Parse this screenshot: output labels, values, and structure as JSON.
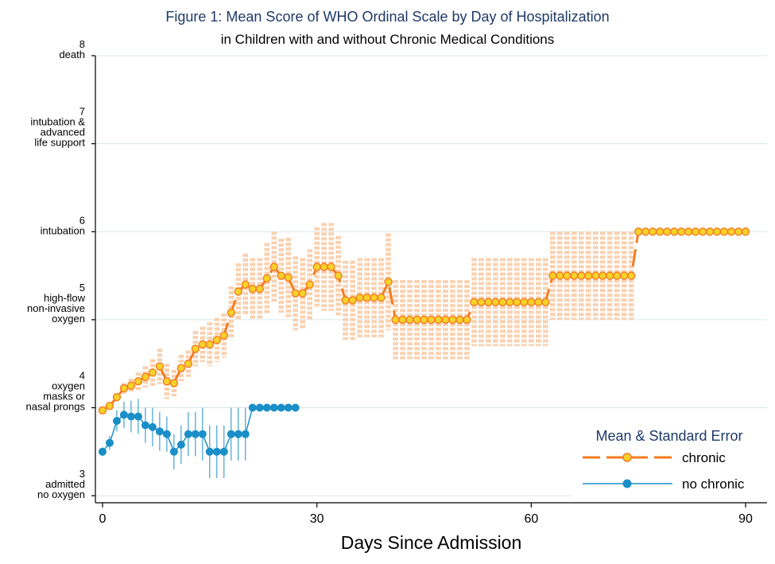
{
  "chart_data": {
    "type": "line",
    "title": "Figure 1: Mean Score of WHO Ordinal Scale by Day of Hospitalization",
    "subtitle": "in Children with and without Chronic Medical Conditions",
    "xlabel": "Days Since Admission",
    "ylabel": "",
    "xlim": [
      -1,
      93
    ],
    "ylim": [
      2.92,
      8.0
    ],
    "x_ticks": [
      0,
      30,
      60,
      90
    ],
    "x_tick_labels": [
      "0",
      "30",
      "60",
      "90"
    ],
    "y_ticks": [
      {
        "value": 3,
        "number": "3",
        "lines": [
          "admitted",
          "no oxygen"
        ]
      },
      {
        "value": 4,
        "number": "4",
        "lines": [
          "oxygen",
          "masks or",
          "nasal prongs"
        ]
      },
      {
        "value": 5,
        "number": "5",
        "lines": [
          "high-flow",
          "non-invasive",
          "oxygen"
        ]
      },
      {
        "value": 6,
        "number": "6",
        "lines": [
          "intubation"
        ]
      },
      {
        "value": 7,
        "number": "7",
        "lines": [
          "intubation &",
          "advanced",
          "life support"
        ]
      },
      {
        "value": 8,
        "number": "8",
        "lines": [
          "death"
        ]
      }
    ],
    "grid": true,
    "legend": {
      "title": "Mean & Standard Error",
      "position": "bottom-right",
      "entries": [
        "chronic",
        "no chronic"
      ]
    },
    "colors": {
      "chronic": "#f47b20",
      "chronic_marker": "#f6d12a",
      "chronic_error": "#f9c79f",
      "no_chronic": "#1a8fc7",
      "grid": "#dbe6e9",
      "title": "#1f3a68"
    },
    "series": [
      {
        "name": "chronic",
        "style": "dashed",
        "x": [
          0,
          1,
          2,
          3,
          4,
          5,
          6,
          7,
          8,
          9,
          10,
          11,
          12,
          13,
          14,
          15,
          16,
          17,
          18,
          19,
          20,
          21,
          22,
          23,
          24,
          25,
          26,
          27,
          28,
          29,
          30,
          31,
          32,
          33,
          34,
          35,
          36,
          37,
          38,
          39,
          40,
          41,
          42,
          43,
          44,
          45,
          46,
          47,
          48,
          49,
          50,
          51,
          52,
          53,
          54,
          55,
          56,
          57,
          58,
          59,
          60,
          61,
          62,
          63,
          64,
          65,
          66,
          67,
          68,
          69,
          70,
          71,
          72,
          73,
          74,
          75,
          76,
          77,
          78,
          79,
          80,
          81,
          82,
          83,
          84,
          85,
          86,
          87,
          88,
          89,
          90
        ],
        "y": [
          3.97,
          4.02,
          4.12,
          4.22,
          4.25,
          4.3,
          4.35,
          4.4,
          4.47,
          4.3,
          4.28,
          4.45,
          4.5,
          4.67,
          4.72,
          4.72,
          4.77,
          4.82,
          5.08,
          5.32,
          5.4,
          5.35,
          5.35,
          5.47,
          5.6,
          5.5,
          5.48,
          5.3,
          5.3,
          5.4,
          5.6,
          5.6,
          5.6,
          5.5,
          5.22,
          5.22,
          5.25,
          5.25,
          5.25,
          5.25,
          5.43,
          5.0,
          5.0,
          5.0,
          5.0,
          5.0,
          5.0,
          5.0,
          5.0,
          5.0,
          5.0,
          5.0,
          5.2,
          5.2,
          5.2,
          5.2,
          5.2,
          5.2,
          5.2,
          5.2,
          5.2,
          5.2,
          5.2,
          5.5,
          5.5,
          5.5,
          5.5,
          5.5,
          5.5,
          5.5,
          5.5,
          5.5,
          5.5,
          5.5,
          5.5,
          6.0,
          6.0,
          6.0,
          6.0,
          6.0,
          6.0,
          6.0,
          6.0,
          6.0,
          6.0,
          6.0,
          6.0,
          6.0,
          6.0,
          6.0,
          6.0
        ],
        "se": [
          0,
          0,
          0,
          0.06,
          0.08,
          0.1,
          0.12,
          0.15,
          0.2,
          0.2,
          0.15,
          0.15,
          0.15,
          0.2,
          0.2,
          0.25,
          0.25,
          0.25,
          0.3,
          0.32,
          0.35,
          0.35,
          0.35,
          0.4,
          0.4,
          0.42,
          0.45,
          0.42,
          0.4,
          0.4,
          0.45,
          0.5,
          0.5,
          0.45,
          0.45,
          0.45,
          0.45,
          0.45,
          0.45,
          0.45,
          0.55,
          0.45,
          0.45,
          0.45,
          0.45,
          0.45,
          0.45,
          0.45,
          0.45,
          0.45,
          0.45,
          0.45,
          0.5,
          0.5,
          0.5,
          0.5,
          0.5,
          0.5,
          0.5,
          0.5,
          0.5,
          0.5,
          0.5,
          0.5,
          0.5,
          0.5,
          0.5,
          0.5,
          0.5,
          0.5,
          0.5,
          0.5,
          0.5,
          0.5,
          0.5,
          0,
          0,
          0,
          0,
          0,
          0,
          0,
          0,
          0,
          0,
          0,
          0,
          0,
          0,
          0,
          0
        ]
      },
      {
        "name": "no chronic",
        "style": "solid",
        "x": [
          0,
          1,
          2,
          3,
          4,
          5,
          6,
          7,
          8,
          9,
          10,
          11,
          12,
          13,
          14,
          15,
          16,
          17,
          18,
          19,
          20,
          21,
          22,
          23,
          24,
          25,
          26,
          27
        ],
        "y": [
          3.5,
          3.6,
          3.85,
          3.92,
          3.9,
          3.9,
          3.8,
          3.78,
          3.73,
          3.7,
          3.5,
          3.58,
          3.7,
          3.7,
          3.7,
          3.5,
          3.5,
          3.5,
          3.7,
          3.7,
          3.7,
          4.0,
          4.0,
          4.0,
          4.0,
          4.0,
          4.0,
          4.0
        ],
        "se": [
          0.05,
          0.08,
          0.12,
          0.15,
          0.18,
          0.2,
          0.2,
          0.22,
          0.22,
          0.2,
          0.2,
          0.22,
          0.25,
          0.25,
          0.3,
          0.3,
          0.3,
          0.3,
          0.3,
          0.3,
          0.3,
          0,
          0,
          0,
          0,
          0,
          0,
          0
        ]
      }
    ]
  }
}
